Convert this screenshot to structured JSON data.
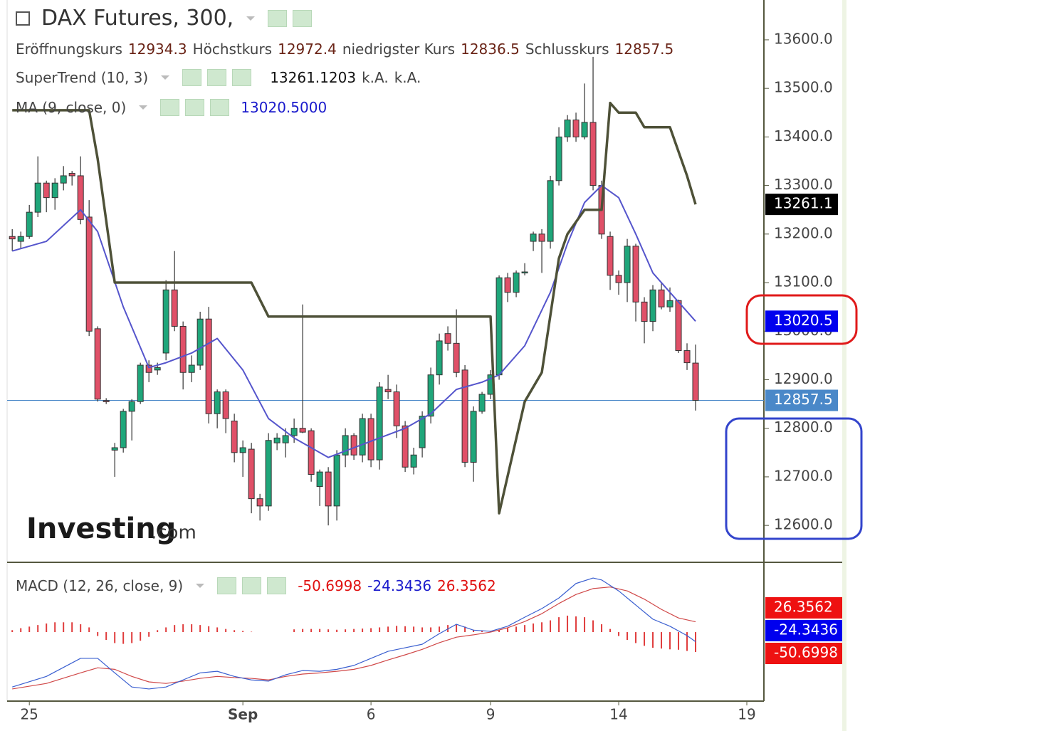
{
  "chart_data": [
    {
      "type": "candlestick",
      "title": "DAX Futures, 300,",
      "ohlc_labels": [
        "Eröffnungskurs",
        "Höchstkurs",
        "niedrigster Kurs",
        "Schlusskurs"
      ],
      "up_color": "#1fa67a",
      "down_color": "#e05068",
      "xlim": [
        -0.6,
        88
      ],
      "xticks": [
        {
          "value": 2,
          "label": "25"
        },
        {
          "value": 27,
          "label": "Sep",
          "bold": true
        },
        {
          "value": 42,
          "label": "6"
        },
        {
          "value": 56,
          "label": "9"
        },
        {
          "value": 71,
          "label": "14"
        },
        {
          "value": 86,
          "label": "19"
        }
      ],
      "ylim": [
        12524,
        13682
      ],
      "yticks": [
        {
          "value": 12600,
          "label": "12600.0"
        },
        {
          "value": 12700,
          "label": "12700.0"
        },
        {
          "value": 12800,
          "label": "12800.0"
        },
        {
          "value": 12900,
          "label": "12900.0"
        },
        {
          "value": 13000,
          "label": "13000.0"
        },
        {
          "value": 13100,
          "label": "13100.0"
        },
        {
          "value": 13200,
          "label": "13200.0"
        },
        {
          "value": 13300,
          "label": "13300.0"
        },
        {
          "value": 13400,
          "label": "13400.0"
        },
        {
          "value": 13500,
          "label": "13500.0"
        },
        {
          "value": 13600,
          "label": "13600.0"
        }
      ],
      "x": [
        0,
        1,
        2,
        3,
        4,
        5,
        6,
        7,
        8,
        9,
        10,
        11,
        12,
        13,
        14,
        15,
        16,
        17,
        18,
        19,
        20,
        21,
        22,
        23,
        24,
        25,
        26,
        27,
        28,
        29,
        30,
        31,
        32,
        33,
        34,
        35,
        36,
        37,
        38,
        39,
        40,
        41,
        42,
        43,
        44,
        45,
        46,
        47,
        48,
        49,
        50,
        51,
        52,
        53,
        54,
        55,
        56,
        57,
        58,
        59,
        60,
        61,
        62,
        63,
        64,
        65,
        66,
        67,
        68,
        69,
        70,
        71,
        72,
        73,
        74,
        75,
        76,
        77,
        78,
        79,
        80
      ],
      "open": [
        13195,
        13185,
        13195,
        13245,
        13305,
        13275,
        13305,
        13325,
        13320,
        13235,
        13005,
        12857,
        12755,
        12760,
        12835,
        12855,
        12930,
        12920,
        12955,
        13085,
        13010,
        12915,
        12930,
        13025,
        12830,
        12875,
        12815,
        12750,
        12757,
        12655,
        12640,
        12770,
        12770,
        12785,
        12800,
        12795,
        12680,
        12710,
        12640,
        12745,
        12785,
        12745,
        12820,
        12735,
        12880,
        12875,
        12805,
        12720,
        12760,
        12825,
        12910,
        12995,
        12975,
        12920,
        12730,
        12835,
        12870,
        12910,
        13110,
        13080,
        13120,
        13185,
        13200,
        13185,
        13310,
        13400,
        13435,
        13400,
        13430,
        13300,
        13195,
        13115,
        13100,
        13175,
        13060,
        13020,
        13085,
        13050,
        13063,
        12960,
        12934.3
      ],
      "high": [
        13210,
        13205,
        13260,
        13360,
        13310,
        13315,
        13340,
        13330,
        13360,
        13270,
        13010,
        12862,
        12770,
        12840,
        12860,
        12935,
        12940,
        12935,
        13105,
        13165,
        13020,
        12950,
        13040,
        13050,
        12880,
        12880,
        12830,
        12775,
        12770,
        12665,
        12790,
        12790,
        12800,
        12820,
        13055,
        12800,
        12715,
        12720,
        12755,
        12800,
        12790,
        12830,
        12830,
        12895,
        12910,
        12890,
        12815,
        12760,
        12835,
        12925,
        12995,
        13010,
        13045,
        12930,
        12845,
        12875,
        12920,
        13115,
        13120,
        13125,
        13140,
        13205,
        13210,
        13320,
        13420,
        13445,
        13450,
        13510,
        13565,
        13310,
        13205,
        13125,
        13190,
        13180,
        13070,
        13095,
        13100,
        13090,
        13065,
        12975,
        12972.4
      ],
      "low": [
        13165,
        13170,
        13190,
        13235,
        13245,
        13250,
        13290,
        13300,
        13220,
        12990,
        12855,
        12850,
        12700,
        12750,
        12775,
        12850,
        12895,
        12910,
        12940,
        13000,
        12880,
        12895,
        12920,
        12810,
        12800,
        12790,
        12730,
        12700,
        12625,
        12610,
        12630,
        12755,
        12740,
        12770,
        12790,
        12690,
        12640,
        12600,
        12610,
        12720,
        12735,
        12730,
        12720,
        12715,
        12860,
        12780,
        12710,
        12705,
        12740,
        12810,
        12890,
        12960,
        12905,
        12720,
        12690,
        12830,
        12860,
        12900,
        13060,
        13070,
        13115,
        13165,
        13120,
        13170,
        13300,
        13390,
        13390,
        13395,
        13290,
        13190,
        13085,
        13075,
        13060,
        13020,
        12975,
        13000,
        13045,
        13040,
        12955,
        12920,
        12836.5
      ],
      "close": [
        13190,
        13195,
        13245,
        13305,
        13275,
        13305,
        13320,
        13320,
        13230,
        13000,
        12860,
        12855,
        12760,
        12835,
        12855,
        12930,
        12915,
        12925,
        13085,
        13010,
        12915,
        12930,
        13025,
        12830,
        12875,
        12820,
        12750,
        12760,
        12655,
        12640,
        12775,
        12780,
        12785,
        12800,
        12792,
        12705,
        12710,
        12640,
        12745,
        12785,
        12745,
        12820,
        12735,
        12885,
        12875,
        12805,
        12720,
        12745,
        12825,
        12910,
        12980,
        12975,
        12915,
        12730,
        12835,
        12870,
        12910,
        13110,
        13080,
        13120,
        13122,
        13200,
        13185,
        13310,
        13400,
        13435,
        13400,
        13430,
        13300,
        13200,
        13115,
        13100,
        13175,
        13060,
        13020,
        13085,
        13050,
        13063,
        12960,
        12935,
        12857.5
      ],
      "close_line_color": "#4a88c8",
      "supertrend": {
        "name": "SuperTrend (10, 3)",
        "color": "#4e5138",
        "x": [
          0,
          9,
          10,
          12,
          28,
          30,
          56,
          57,
          60,
          62,
          64,
          65,
          67,
          69,
          70,
          71,
          73,
          74,
          77,
          79,
          80
        ],
        "values": [
          13455,
          13455,
          13355,
          13100,
          13100,
          13030,
          13030,
          12625,
          12855,
          12915,
          13150,
          13200,
          13250,
          13250,
          13470,
          13450,
          13450,
          13420,
          13420,
          13320,
          13261.1203
        ],
        "tag_label": "13261.1",
        "notes": [
          "k.A.",
          "k.A."
        ]
      },
      "ma": {
        "name": "MA (9, close, 0)",
        "color": "#5555cc",
        "x": [
          0,
          4,
          8,
          10,
          13,
          16,
          18,
          21,
          24,
          27,
          30,
          33,
          37,
          40,
          43,
          46,
          49,
          52,
          55,
          57,
          60,
          63,
          65,
          67,
          69,
          71,
          73,
          75,
          77,
          80
        ],
        "values": [
          13165,
          13185,
          13250,
          13205,
          13050,
          12925,
          12935,
          12955,
          12985,
          12920,
          12820,
          12780,
          12740,
          12760,
          12780,
          12800,
          12830,
          12880,
          12895,
          12910,
          12970,
          13080,
          13180,
          13265,
          13300,
          13275,
          13200,
          13120,
          13080,
          13020.5
        ],
        "last_label": "13020.5000"
      },
      "watermark": [
        "Investing",
        ".com"
      ]
    },
    {
      "type": "macd",
      "title": "MACD (12, 26, close, 9)",
      "ylim": [
        -176,
        178
      ],
      "histogram": {
        "color": "#e03c3c",
        "values": [
          5,
          10,
          14,
          18,
          22,
          25,
          25,
          25,
          20,
          12,
          -10,
          -20,
          -28,
          -30,
          -28,
          -22,
          -12,
          5,
          12,
          18,
          20,
          20,
          18,
          15,
          12,
          8,
          5,
          3,
          1,
          0,
          0,
          0,
          0,
          7,
          8,
          8,
          8,
          7,
          6,
          7,
          8,
          9,
          10,
          12,
          14,
          16,
          15,
          14,
          12,
          12,
          14,
          18,
          20,
          14,
          6,
          3,
          2,
          5,
          10,
          14,
          18,
          22,
          25,
          30,
          38,
          42,
          40,
          38,
          30,
          20,
          8,
          -10,
          -20,
          -28,
          -35,
          -40,
          -42,
          -44,
          -45,
          -48,
          -50.6998
        ]
      },
      "macd": {
        "color": "#3a5fd0",
        "x": [
          0,
          4,
          8,
          10,
          12,
          14,
          16,
          18,
          20,
          22,
          24,
          26,
          28,
          30,
          32,
          34,
          36,
          38,
          40,
          42,
          44,
          46,
          48,
          50,
          52,
          54,
          56,
          58,
          60,
          62,
          64,
          66,
          68,
          69,
          71,
          73,
          75,
          77,
          79,
          80
        ],
        "values": [
          -140,
          -113,
          -67,
          -67,
          -104,
          -140,
          -145,
          -140,
          -122,
          -104,
          -100,
          -113,
          -122,
          -125,
          -109,
          -98,
          -100,
          -95,
          -85,
          -67,
          -49,
          -40,
          -31,
          -4,
          20,
          5,
          2,
          15,
          38,
          60,
          87,
          124,
          138,
          133,
          105,
          69,
          33,
          15,
          -9,
          -24.3436
        ]
      },
      "signal": {
        "color": "#d04848",
        "x": [
          0,
          4,
          8,
          10,
          12,
          14,
          16,
          18,
          20,
          22,
          24,
          26,
          28,
          30,
          32,
          34,
          36,
          38,
          40,
          42,
          44,
          46,
          48,
          50,
          52,
          54,
          56,
          58,
          60,
          62,
          64,
          66,
          68,
          70,
          72,
          74,
          76,
          78,
          80
        ],
        "values": [
          -145,
          -131,
          -104,
          -91,
          -95,
          -113,
          -127,
          -131,
          -125,
          -118,
          -113,
          -116,
          -118,
          -122,
          -113,
          -107,
          -104,
          -100,
          -95,
          -85,
          -71,
          -58,
          -44,
          -27,
          -13,
          -7,
          0,
          11,
          27,
          47,
          73,
          96,
          111,
          115,
          105,
          84,
          58,
          36,
          26.3562
        ]
      }
    }
  ]
}
